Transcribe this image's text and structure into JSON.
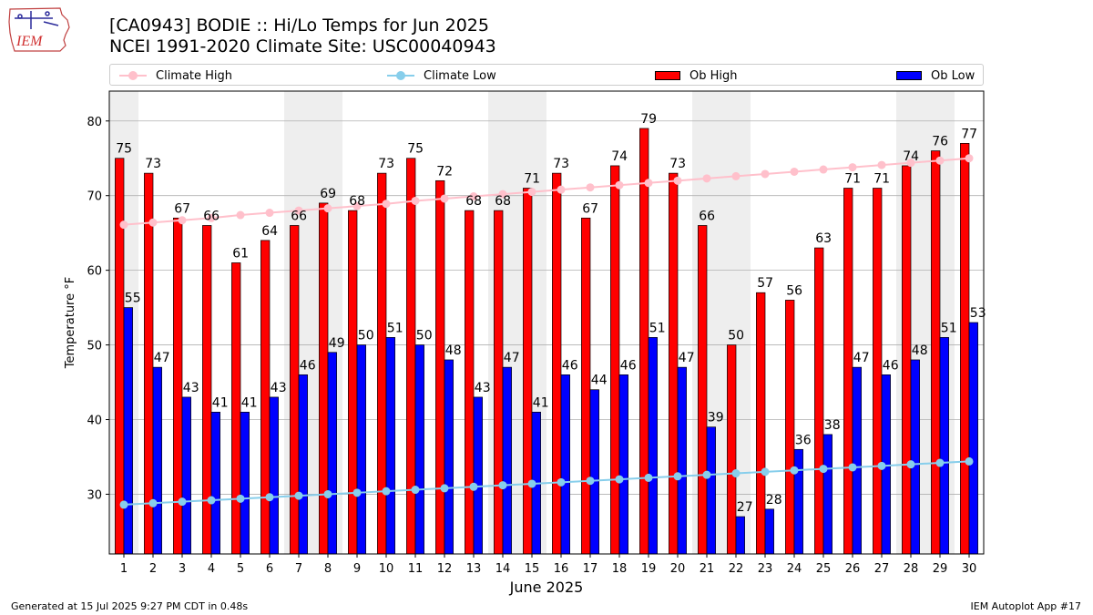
{
  "header": {
    "title_line1": "[CA0943] BODIE :: Hi/Lo Temps for Jun 2025",
    "title_line2": "NCEI 1991-2020 Climate Site: USC00040943",
    "logo_text": "IEM"
  },
  "legend": {
    "climate_high": "Climate High",
    "climate_low": "Climate Low",
    "ob_high": "Ob High",
    "ob_low": "Ob Low"
  },
  "footer": {
    "generated": "Generated at 15 Jul 2025 9:27 PM CDT in 0.48s",
    "app": "IEM Autoplot App #17"
  },
  "colors": {
    "ob_high": "#ff0000",
    "ob_low": "#0000ff",
    "climate_high": "#ffc0cb",
    "climate_low": "#87ceeb",
    "weekend_shade": "#eeeeee",
    "grid": "#b0b0b0"
  },
  "chart_data": {
    "type": "bar",
    "xlabel": "June 2025",
    "ylabel": "Temperature °F",
    "ylim": [
      22,
      84
    ],
    "yticks": [
      30,
      40,
      50,
      60,
      70,
      80
    ],
    "grid": "horizontal",
    "legend_position": "top",
    "weekend_days": [
      1,
      7,
      8,
      14,
      15,
      21,
      22,
      28,
      29
    ],
    "categories": [
      "1",
      "2",
      "3",
      "4",
      "5",
      "6",
      "7",
      "8",
      "9",
      "10",
      "11",
      "12",
      "13",
      "14",
      "15",
      "16",
      "17",
      "18",
      "19",
      "20",
      "21",
      "22",
      "23",
      "24",
      "25",
      "26",
      "27",
      "28",
      "29",
      "30"
    ],
    "series": [
      {
        "name": "Ob High",
        "kind": "bar",
        "values": [
          75,
          73,
          67,
          66,
          61,
          64,
          66,
          69,
          68,
          73,
          75,
          72,
          68,
          68,
          71,
          73,
          67,
          74,
          79,
          73,
          66,
          50,
          57,
          56,
          63,
          71,
          71,
          74,
          76,
          77
        ]
      },
      {
        "name": "Ob Low",
        "kind": "bar",
        "values": [
          55,
          47,
          43,
          41,
          41,
          43,
          46,
          49,
          50,
          51,
          50,
          48,
          43,
          47,
          41,
          46,
          44,
          46,
          51,
          47,
          39,
          27,
          28,
          36,
          38,
          47,
          46,
          48,
          51,
          53
        ]
      },
      {
        "name": "Climate High",
        "kind": "line",
        "values": [
          66.1,
          66.4,
          66.7,
          67.0,
          67.4,
          67.7,
          68.0,
          68.3,
          68.6,
          68.9,
          69.3,
          69.6,
          69.9,
          70.2,
          70.5,
          70.8,
          71.1,
          71.4,
          71.7,
          72.0,
          72.3,
          72.6,
          72.9,
          73.2,
          73.5,
          73.8,
          74.1,
          74.4,
          74.7,
          75.0
        ]
      },
      {
        "name": "Climate Low",
        "kind": "line",
        "values": [
          28.6,
          28.8,
          29.0,
          29.2,
          29.4,
          29.6,
          29.8,
          30.0,
          30.2,
          30.4,
          30.6,
          30.8,
          31.0,
          31.2,
          31.4,
          31.6,
          31.8,
          32.0,
          32.2,
          32.4,
          32.6,
          32.8,
          33.0,
          33.2,
          33.4,
          33.6,
          33.8,
          34.0,
          34.2,
          34.4
        ]
      }
    ]
  }
}
